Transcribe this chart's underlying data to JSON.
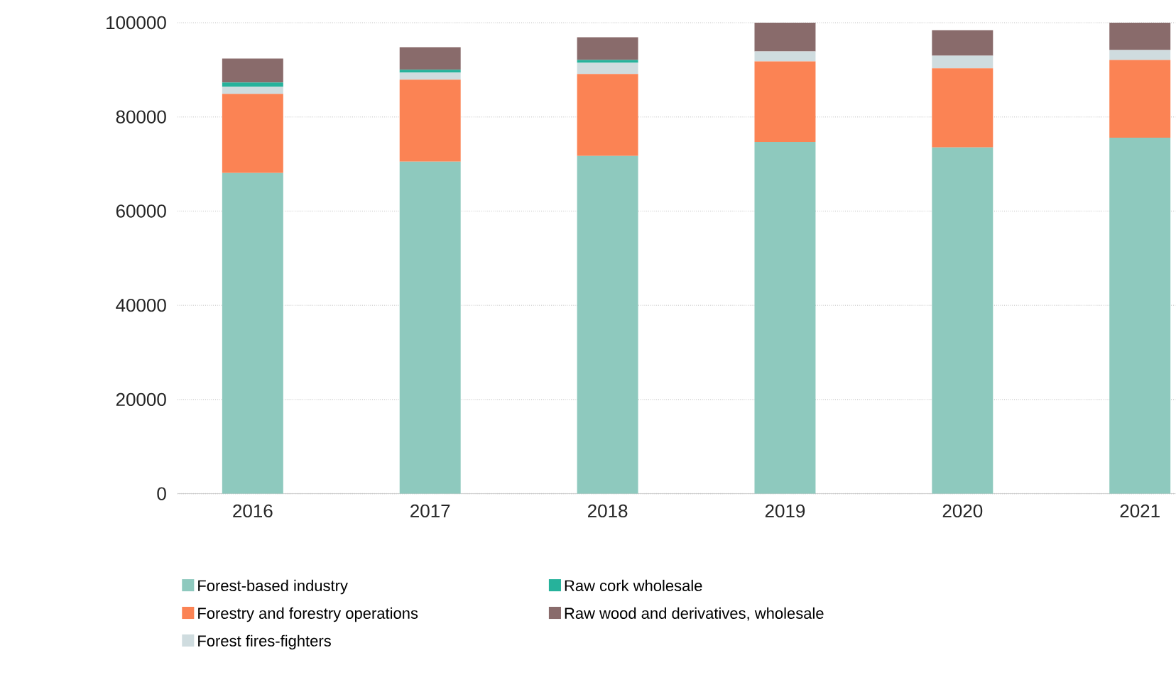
{
  "chart_data": {
    "type": "bar",
    "stacked": true,
    "categories": [
      "2016",
      "2017",
      "2018",
      "2019",
      "2020",
      "2021"
    ],
    "series": [
      {
        "name": "Forest-based industry",
        "color": "#8ec9be",
        "values": [
          68100,
          70500,
          71700,
          74700,
          73500,
          75600
        ]
      },
      {
        "name": "Forestry and forestry operations",
        "color": "#fb8354",
        "values": [
          16800,
          17400,
          17400,
          17100,
          16800,
          16500
        ]
      },
      {
        "name": "Forest fires-fighters",
        "color": "#cfdcdf",
        "values": [
          1500,
          1500,
          2400,
          2100,
          2700,
          2100
        ]
      },
      {
        "name": "Raw cork wholesale",
        "color": "#26b29b",
        "values": [
          900,
          600,
          600,
          0,
          0,
          0
        ]
      },
      {
        "name": "Raw wood and derivatives, wholesale",
        "color": "#896b6b",
        "values": [
          5100,
          4800,
          4800,
          6100,
          5400,
          5800
        ]
      }
    ],
    "ylim": [
      0,
      100000
    ],
    "yticks": [
      0,
      20000,
      40000,
      60000,
      80000,
      100000
    ],
    "grid": "y",
    "legend": "bottom"
  }
}
